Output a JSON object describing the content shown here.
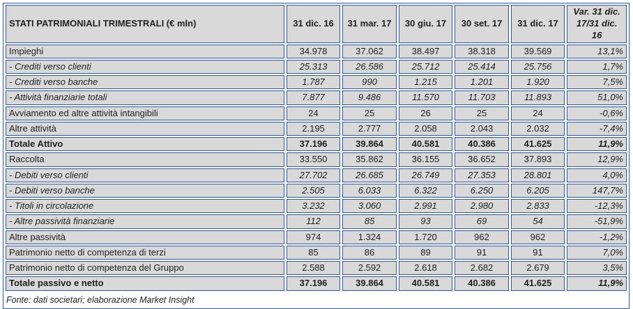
{
  "colors": {
    "border_blue": "#2f5597",
    "cell_gray": "#d9d9d9",
    "text": "#1f1f1f"
  },
  "chart_data": {
    "type": "table",
    "title": "STATI PATRIMONIALI TRIMESTRALI (€ mln)",
    "columns": [
      "31 dic. 16",
      "31 mar. 17",
      "30 giu. 17",
      "30 set. 17",
      "31 dic. 17",
      "Var. 31 dic. 17/31 dic. 16"
    ],
    "rows": [
      {
        "label": "Impieghi",
        "type": "main",
        "values": [
          "34.978",
          "37.062",
          "38.497",
          "38.318",
          "39.569"
        ],
        "variation": "13,1%"
      },
      {
        "label": "- Crediti verso clienti",
        "type": "sub",
        "values": [
          "25.313",
          "26.586",
          "25.712",
          "25.414",
          "25.756"
        ],
        "variation": "1,7%"
      },
      {
        "label": "- Crediti verso banche",
        "type": "sub",
        "values": [
          "1.787",
          "990",
          "1.215",
          "1.201",
          "1.920"
        ],
        "variation": "7,5%"
      },
      {
        "label": "- Attività finanziarie totali",
        "type": "sub",
        "values": [
          "7.877",
          "9.486",
          "11.570",
          "11.703",
          "11.893"
        ],
        "variation": "51,0%"
      },
      {
        "label": "Avviamento ed altre attività intangibili",
        "type": "main",
        "values": [
          "24",
          "25",
          "26",
          "25",
          "24"
        ],
        "variation": "-0,6%"
      },
      {
        "label": "Altre attività",
        "type": "main",
        "values": [
          "2.195",
          "2.777",
          "2.058",
          "2.043",
          "2.032"
        ],
        "variation": "-7,4%"
      },
      {
        "label": "Totale Attivo",
        "type": "total",
        "values": [
          "37.196",
          "39.864",
          "40.581",
          "40.386",
          "41.625"
        ],
        "variation": "11,9%"
      },
      {
        "label": "Raccolta",
        "type": "main",
        "values": [
          "33.550",
          "35.862",
          "36.155",
          "36.652",
          "37.893"
        ],
        "variation": "12,9%"
      },
      {
        "label": "- Debiti verso clienti",
        "type": "sub",
        "values": [
          "27.702",
          "26.685",
          "26.749",
          "27.353",
          "28.801"
        ],
        "variation": "4,0%"
      },
      {
        "label": "- Debiti verso banche",
        "type": "sub",
        "values": [
          "2.505",
          "6.033",
          "6.322",
          "6.250",
          "6.205"
        ],
        "variation": "147,7%"
      },
      {
        "label": "- Titoli in circolazione",
        "type": "sub",
        "values": [
          "3.232",
          "3.060",
          "2.991",
          "2.980",
          "2.833"
        ],
        "variation": "-12,3%"
      },
      {
        "label": "- Altre passività finanziarie",
        "type": "sub",
        "values": [
          "112",
          "85",
          "93",
          "69",
          "54"
        ],
        "variation": "-51,9%"
      },
      {
        "label": "Altre passività",
        "type": "main",
        "values": [
          "974",
          "1.324",
          "1.720",
          "962",
          "962"
        ],
        "variation": "-1,2%"
      },
      {
        "label": "Patrimonio netto di competenza di terzi",
        "type": "main",
        "values": [
          "85",
          "86",
          "89",
          "91",
          "91"
        ],
        "variation": "7,0%"
      },
      {
        "label": "Patrimonio netto di competenza del Gruppo",
        "type": "main",
        "values": [
          "2.588",
          "2.592",
          "2.618",
          "2.682",
          "2.679"
        ],
        "variation": "3,5%"
      },
      {
        "label": "Totale passivo e netto",
        "type": "total",
        "values": [
          "37.196",
          "39.864",
          "40.581",
          "40.386",
          "41.625"
        ],
        "variation": "11,9%"
      }
    ],
    "source": "Fonte: dati societari; elaborazione Market Insight"
  }
}
